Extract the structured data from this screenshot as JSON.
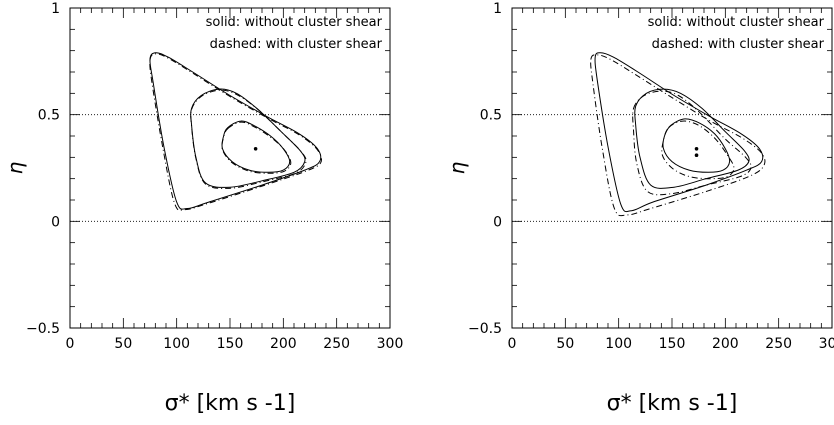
{
  "chart_data": [
    {
      "type": "contour",
      "panel": "left",
      "xlabel": "σ* [km s -1]",
      "ylabel": "η",
      "xlim": [
        0,
        300
      ],
      "ylim": [
        -0.5,
        1
      ],
      "x_ticks": [
        "0",
        "50",
        "100",
        "150",
        "200",
        "250",
        "300"
      ],
      "y_ticks": [
        "−0.5",
        "0",
        "0.5",
        "1"
      ],
      "reference_lines": [
        0,
        0.5
      ],
      "annotations": [
        "solid: without cluster shear",
        "dashed: with cluster shear"
      ],
      "best_fit_points": [
        {
          "x": 174,
          "y": 0.34
        }
      ],
      "contours": [
        {
          "style": "solid",
          "level": 1,
          "x": [
            148,
            160,
            172,
            188,
            200,
            206,
            200,
            186,
            168,
            152,
            143,
            144
          ],
          "y": [
            0.44,
            0.47,
            0.45,
            0.4,
            0.34,
            0.28,
            0.24,
            0.23,
            0.24,
            0.28,
            0.34,
            0.4
          ]
        },
        {
          "style": "dashed",
          "level": 1,
          "x": [
            148,
            160,
            172,
            188,
            201,
            207,
            201,
            186,
            168,
            152,
            143,
            144
          ],
          "y": [
            0.435,
            0.465,
            0.445,
            0.395,
            0.335,
            0.275,
            0.235,
            0.225,
            0.235,
            0.275,
            0.335,
            0.395
          ]
        },
        {
          "style": "solid",
          "level": 2,
          "x": [
            114,
            123,
            140,
            156,
            175,
            198,
            216,
            220,
            210,
            180,
            150,
            127,
            118,
            114
          ],
          "y": [
            0.53,
            0.59,
            0.62,
            0.6,
            0.53,
            0.42,
            0.33,
            0.28,
            0.23,
            0.19,
            0.16,
            0.18,
            0.3,
            0.45
          ]
        },
        {
          "style": "dashed",
          "level": 2,
          "x": [
            114,
            123,
            140,
            156,
            176,
            199,
            217,
            221,
            211,
            180,
            150,
            127,
            118,
            114
          ],
          "y": [
            0.525,
            0.585,
            0.615,
            0.595,
            0.525,
            0.415,
            0.325,
            0.275,
            0.225,
            0.185,
            0.155,
            0.175,
            0.295,
            0.445
          ]
        },
        {
          "style": "solid",
          "level": 3,
          "x": [
            75,
            80,
            92,
            115,
            150,
            185,
            215,
            232,
            234,
            220,
            180,
            130,
            110,
            100,
            88,
            78
          ],
          "y": [
            0.76,
            0.79,
            0.77,
            0.7,
            0.59,
            0.49,
            0.41,
            0.34,
            0.28,
            0.24,
            0.17,
            0.09,
            0.06,
            0.09,
            0.35,
            0.65
          ]
        },
        {
          "style": "dashed",
          "level": 3,
          "x": [
            75,
            80,
            92,
            115,
            150,
            185,
            215,
            232,
            235,
            221,
            180,
            130,
            108,
            98,
            87,
            77
          ],
          "y": [
            0.755,
            0.785,
            0.765,
            0.695,
            0.585,
            0.485,
            0.405,
            0.335,
            0.275,
            0.235,
            0.165,
            0.085,
            0.055,
            0.085,
            0.345,
            0.645
          ]
        }
      ]
    },
    {
      "type": "contour",
      "panel": "right",
      "xlabel": "σ* [km s -1]",
      "ylabel": "η",
      "xlim": [
        0,
        300
      ],
      "ylim": [
        -0.5,
        1
      ],
      "x_ticks": [
        "0",
        "50",
        "100",
        "150",
        "200",
        "250",
        "300"
      ],
      "y_ticks": [
        "−0.5",
        "0",
        "0.5",
        "1"
      ],
      "reference_lines": [
        0,
        0.5
      ],
      "annotations": [
        "solid: without cluster shear",
        "dashed: with cluster shear"
      ],
      "best_fit_points": [
        {
          "x": 173,
          "y": 0.34
        },
        {
          "x": 173,
          "y": 0.31
        }
      ],
      "contours": [
        {
          "style": "solid",
          "level": 1,
          "x": [
            149,
            162,
            176,
            190,
            200,
            204,
            198,
            184,
            166,
            150,
            142,
            143
          ],
          "y": [
            0.45,
            0.48,
            0.46,
            0.41,
            0.34,
            0.28,
            0.24,
            0.23,
            0.24,
            0.28,
            0.34,
            0.4
          ]
        },
        {
          "style": "dashed",
          "level": 1,
          "x": [
            147,
            160,
            175,
            190,
            202,
            208,
            202,
            186,
            166,
            150,
            141,
            142
          ],
          "y": [
            0.44,
            0.47,
            0.45,
            0.39,
            0.31,
            0.25,
            0.21,
            0.2,
            0.21,
            0.25,
            0.31,
            0.38
          ]
        },
        {
          "style": "solid",
          "level": 2,
          "x": [
            116,
            126,
            142,
            158,
            178,
            200,
            218,
            222,
            212,
            182,
            152,
            130,
            120,
            116
          ],
          "y": [
            0.54,
            0.6,
            0.62,
            0.6,
            0.53,
            0.42,
            0.33,
            0.28,
            0.24,
            0.2,
            0.16,
            0.17,
            0.3,
            0.45
          ]
        },
        {
          "style": "dashed",
          "level": 2,
          "x": [
            114,
            124,
            140,
            156,
            176,
            199,
            219,
            224,
            214,
            182,
            150,
            127,
            117,
            114
          ],
          "y": [
            0.53,
            0.59,
            0.61,
            0.59,
            0.51,
            0.39,
            0.3,
            0.25,
            0.21,
            0.17,
            0.13,
            0.14,
            0.27,
            0.42
          ]
        },
        {
          "style": "solid",
          "level": 3,
          "x": [
            78,
            83,
            95,
            118,
            152,
            186,
            215,
            232,
            234,
            220,
            182,
            132,
            112,
            102,
            90,
            80
          ],
          "y": [
            0.77,
            0.79,
            0.77,
            0.7,
            0.59,
            0.49,
            0.41,
            0.34,
            0.28,
            0.24,
            0.17,
            0.09,
            0.05,
            0.08,
            0.35,
            0.66
          ]
        },
        {
          "style": "dashed",
          "level": 3,
          "x": [
            74,
            80,
            92,
            115,
            150,
            186,
            216,
            234,
            236,
            222,
            182,
            130,
            108,
            96,
            85,
            76
          ],
          "y": [
            0.76,
            0.78,
            0.76,
            0.69,
            0.58,
            0.47,
            0.39,
            0.32,
            0.26,
            0.21,
            0.14,
            0.06,
            0.03,
            0.06,
            0.33,
            0.64
          ]
        }
      ]
    }
  ]
}
